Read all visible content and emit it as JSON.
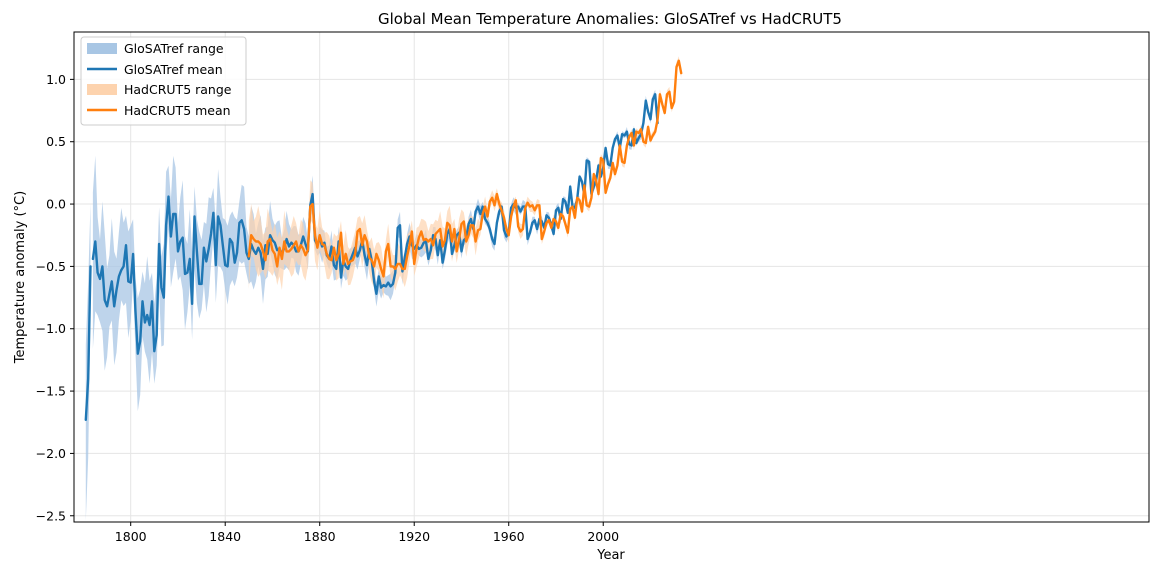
{
  "chart_data": {
    "type": "line",
    "title": "Global Mean Temperature Anomalies: GloSATref vs HadCRUT5",
    "xlabel": "Year",
    "ylabel": "Temperature anomaly (°C)",
    "xlim": [
      1776,
      2231
    ],
    "ylim": [
      -2.55,
      1.38
    ],
    "xticks": [
      1800,
      1840,
      1880,
      1920,
      1960,
      2000
    ],
    "yticks": [
      -2.5,
      -2.0,
      -1.5,
      -1.0,
      -0.5,
      0.0,
      0.5,
      1.0
    ],
    "ytick_labels": [
      "−2.5",
      "−2.0",
      "−1.5",
      "−1.0",
      "−0.5",
      "0.0",
      "0.5",
      "1.0"
    ],
    "grid": true,
    "legend_position": "top-left",
    "series": [
      {
        "name": "GloSATref mean",
        "range_name": "GloSATref range",
        "color": "#1f77b4",
        "range_color": "#a8c6e4",
        "segments": [
          {
            "start": 1781,
            "values": [
              -1.73,
              -1.4,
              -0.5
            ]
          },
          {
            "start": 1784,
            "values": [
              -0.44,
              -0.3,
              -0.55,
              -0.6,
              -0.5,
              -0.77,
              -0.82,
              -0.72,
              -0.62,
              -0.82,
              -0.69,
              -0.58,
              -0.53,
              -0.5,
              -0.33,
              -0.62,
              -0.63,
              -0.4,
              -0.85,
              -1.2,
              -1.1,
              -0.78,
              -0.95,
              -0.89,
              -0.97,
              -0.78,
              -1.18,
              -1.05,
              -0.32,
              -0.67,
              -0.75,
              -0.17,
              0.06,
              -0.26,
              -0.08,
              -0.08,
              -0.38,
              -0.3,
              -0.27,
              -0.56,
              -0.55,
              -0.44,
              -0.8,
              -0.1,
              -0.38,
              -0.64,
              -0.64,
              -0.35,
              -0.46,
              -0.36,
              -0.24,
              -0.07,
              -0.49,
              -0.1,
              -0.17,
              -0.33,
              -0.49,
              -0.5,
              -0.28,
              -0.31,
              -0.47,
              -0.39,
              -0.15,
              -0.13,
              -0.2,
              -0.39,
              -0.44,
              -0.32,
              -0.37,
              -0.4,
              -0.35,
              -0.39,
              -0.52,
              -0.33,
              -0.4,
              -0.25,
              -0.29,
              -0.31,
              -0.37,
              -0.36,
              -0.4,
              -0.35,
              -0.28,
              -0.34,
              -0.31,
              -0.33,
              -0.38,
              -0.38,
              -0.33,
              -0.26,
              -0.32,
              -0.38,
              -0.01,
              0.08,
              -0.29,
              -0.33,
              -0.27,
              -0.34,
              -0.31,
              -0.41,
              -0.44,
              -0.34,
              -0.49,
              -0.52,
              -0.3,
              -0.59,
              -0.45,
              -0.5,
              -0.52,
              -0.45,
              -0.4,
              -0.35,
              -0.42,
              -0.37,
              -0.29,
              -0.41,
              -0.49,
              -0.36,
              -0.45,
              -0.62,
              -0.72,
              -0.58,
              -0.67,
              -0.65,
              -0.66,
              -0.63,
              -0.66,
              -0.64,
              -0.55,
              -0.19,
              -0.17,
              -0.54,
              -0.43,
              -0.32,
              -0.26,
              -0.33,
              -0.36,
              -0.33,
              -0.36,
              -0.35,
              -0.31,
              -0.3,
              -0.44,
              -0.37,
              -0.25,
              -0.28,
              -0.41,
              -0.29,
              -0.47,
              -0.37,
              -0.24,
              -0.2,
              -0.4,
              -0.33,
              -0.25,
              -0.23,
              -0.38,
              -0.29,
              -0.27,
              -0.16,
              -0.12,
              -0.2,
              -0.06,
              -0.02,
              -0.08,
              -0.02,
              -0.12,
              -0.15,
              -0.2,
              -0.28,
              -0.32,
              -0.15,
              -0.06,
              -0.02,
              -0.21,
              -0.26,
              -0.23,
              -0.03,
              0.0,
              -0.03,
              -0.02,
              -0.06,
              -0.02,
              -0.02,
              -0.28,
              -0.23,
              -0.15,
              -0.13,
              -0.2,
              -0.12,
              -0.14,
              -0.19,
              -0.09,
              -0.11,
              -0.17,
              -0.24,
              -0.05,
              -0.03,
              -0.12,
              0.04,
              0.02,
              -0.07,
              0.14,
              -0.02,
              -0.03,
              0.04,
              0.22,
              0.18,
              0.07,
              0.35,
              0.34,
              0.08,
              0.14,
              0.19,
              0.31,
              0.22,
              0.29,
              0.45,
              0.32,
              0.31,
              0.45,
              0.52,
              0.55,
              0.45,
              0.56,
              0.55,
              0.58,
              0.48,
              0.47,
              0.6,
              0.49,
              0.53,
              0.56,
              0.65,
              0.83,
              0.74,
              0.68,
              0.84,
              0.88,
              0.65
            ]
          }
        ],
        "range_width": {
          "1781": 0.6,
          "1790": 0.4,
          "1800": 0.35,
          "1810": 0.35,
          "1820": 0.35,
          "1850": 0.25,
          "1880": 0.1,
          "1920": 0.08,
          "1950": 0.05,
          "1980": 0.03,
          "2022": 0.03
        }
      },
      {
        "name": "HadCRUT5 mean",
        "range_name": "HadCRUT5 range",
        "color": "#ff7f0e",
        "range_color": "#fdd3ae",
        "segments": [
          {
            "start": 1850,
            "values": [
              -0.42,
              -0.25,
              -0.28,
              -0.3,
              -0.3,
              -0.32,
              -0.38,
              -0.45,
              -0.3,
              -0.28,
              -0.37,
              -0.4,
              -0.5,
              -0.35,
              -0.44,
              -0.3,
              -0.38,
              -0.38,
              -0.36,
              -0.33,
              -0.3,
              -0.38,
              -0.33,
              -0.36,
              -0.41,
              -0.37,
              -0.02,
              0.0,
              -0.25,
              -0.35,
              -0.25,
              -0.32,
              -0.33,
              -0.4,
              -0.44,
              -0.45,
              -0.35,
              -0.45,
              -0.4,
              -0.23,
              -0.48,
              -0.4,
              -0.48,
              -0.46,
              -0.45,
              -0.4,
              -0.22,
              -0.2,
              -0.33,
              -0.25,
              -0.3,
              -0.43,
              -0.45,
              -0.5,
              -0.4,
              -0.45,
              -0.52,
              -0.58,
              -0.38,
              -0.32,
              -0.5,
              -0.5,
              -0.52,
              -0.48,
              -0.48,
              -0.52,
              -0.52,
              -0.42,
              -0.33,
              -0.22,
              -0.48,
              -0.35,
              -0.27,
              -0.22,
              -0.29,
              -0.28,
              -0.3,
              -0.28,
              -0.33,
              -0.24,
              -0.22,
              -0.2,
              -0.34,
              -0.29,
              -0.15,
              -0.17,
              -0.3,
              -0.2,
              -0.38,
              -0.28,
              -0.16,
              -0.14,
              -0.3,
              -0.25,
              -0.17,
              -0.17,
              -0.3,
              -0.21,
              -0.2,
              -0.08,
              -0.02,
              -0.1,
              0.02,
              0.05,
              -0.01,
              0.08,
              0.0,
              -0.05,
              -0.11,
              -0.2,
              -0.25,
              -0.1,
              -0.02,
              0.03,
              -0.18,
              -0.22,
              -0.2,
              -0.03,
              0.01,
              -0.02,
              -0.01,
              -0.05,
              -0.01,
              -0.01,
              -0.28,
              -0.22,
              -0.15,
              -0.13,
              -0.19,
              -0.12,
              -0.14,
              -0.19,
              -0.08,
              -0.1,
              -0.16,
              -0.23,
              -0.04,
              -0.02,
              -0.11,
              0.05,
              0.03,
              -0.06,
              0.15,
              -0.01,
              -0.02,
              0.05,
              0.24,
              0.19,
              0.08,
              0.37,
              0.35,
              0.09,
              0.16,
              0.21,
              0.33,
              0.24,
              0.31,
              0.47,
              0.34,
              0.33,
              0.47,
              0.54,
              0.57,
              0.47,
              0.58,
              0.57,
              0.6,
              0.5,
              0.49,
              0.62,
              0.51,
              0.55,
              0.58,
              0.68,
              0.88,
              0.8,
              0.73,
              0.88,
              0.9,
              0.77,
              0.82,
              1.1,
              1.15,
              1.05
            ]
          }
        ],
        "range_width": {
          "1850": 0.22,
          "1880": 0.15,
          "1910": 0.13,
          "1940": 0.12,
          "1950": 0.06,
          "1980": 0.03,
          "2024": 0.03
        }
      }
    ],
    "legend": [
      {
        "label": "GloSATref range",
        "kind": "patch",
        "color": "#a8c6e4"
      },
      {
        "label": "GloSATref mean",
        "kind": "line",
        "color": "#1f77b4"
      },
      {
        "label": "HadCRUT5 range",
        "kind": "patch",
        "color": "#fdd3ae"
      },
      {
        "label": "HadCRUT5 mean",
        "kind": "line",
        "color": "#ff7f0e"
      }
    ]
  }
}
